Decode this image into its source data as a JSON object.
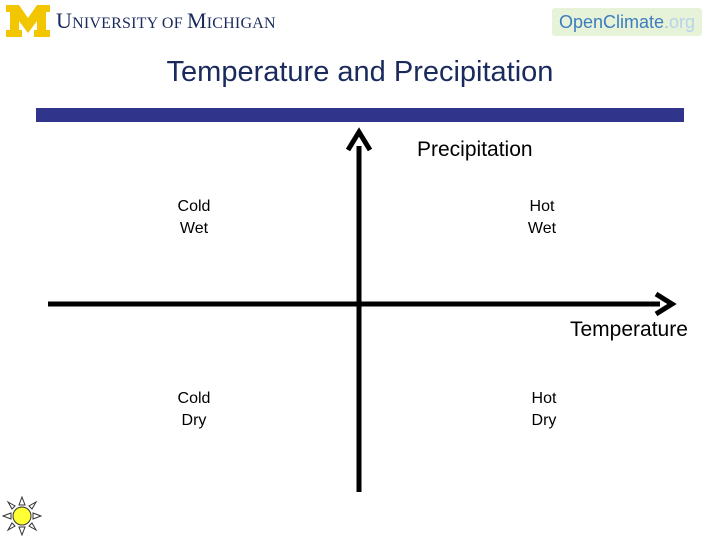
{
  "header": {
    "university_logo": {
      "initial": "U",
      "initial_rest": "NIVERSITY OF ",
      "second_initial": "M",
      "second_rest": "ICHIGAN"
    },
    "partner_logo": {
      "open": "Open",
      "climate": "Climate",
      "dot": ".",
      "org": "org"
    }
  },
  "slide": {
    "title": "Temperature and Precipitation"
  },
  "diagram": {
    "y_axis_label": "Precipitation",
    "x_axis_label": "Temperature",
    "quadrants": {
      "top_left": {
        "line1": "Cold",
        "line2": "Wet"
      },
      "top_right": {
        "line1": "Hot",
        "line2": "Wet"
      },
      "bottom_left": {
        "line1": "Cold",
        "line2": "Dry"
      },
      "bottom_right": {
        "line1": "Hot",
        "line2": "Dry"
      }
    }
  },
  "colors": {
    "title": "#1a2a5c",
    "title_bar": "#30348a",
    "um_maize": "#f2c600",
    "axis": "#000000"
  },
  "icons": {
    "um_block_m": "block-m-icon",
    "sun": "sun-icon"
  }
}
